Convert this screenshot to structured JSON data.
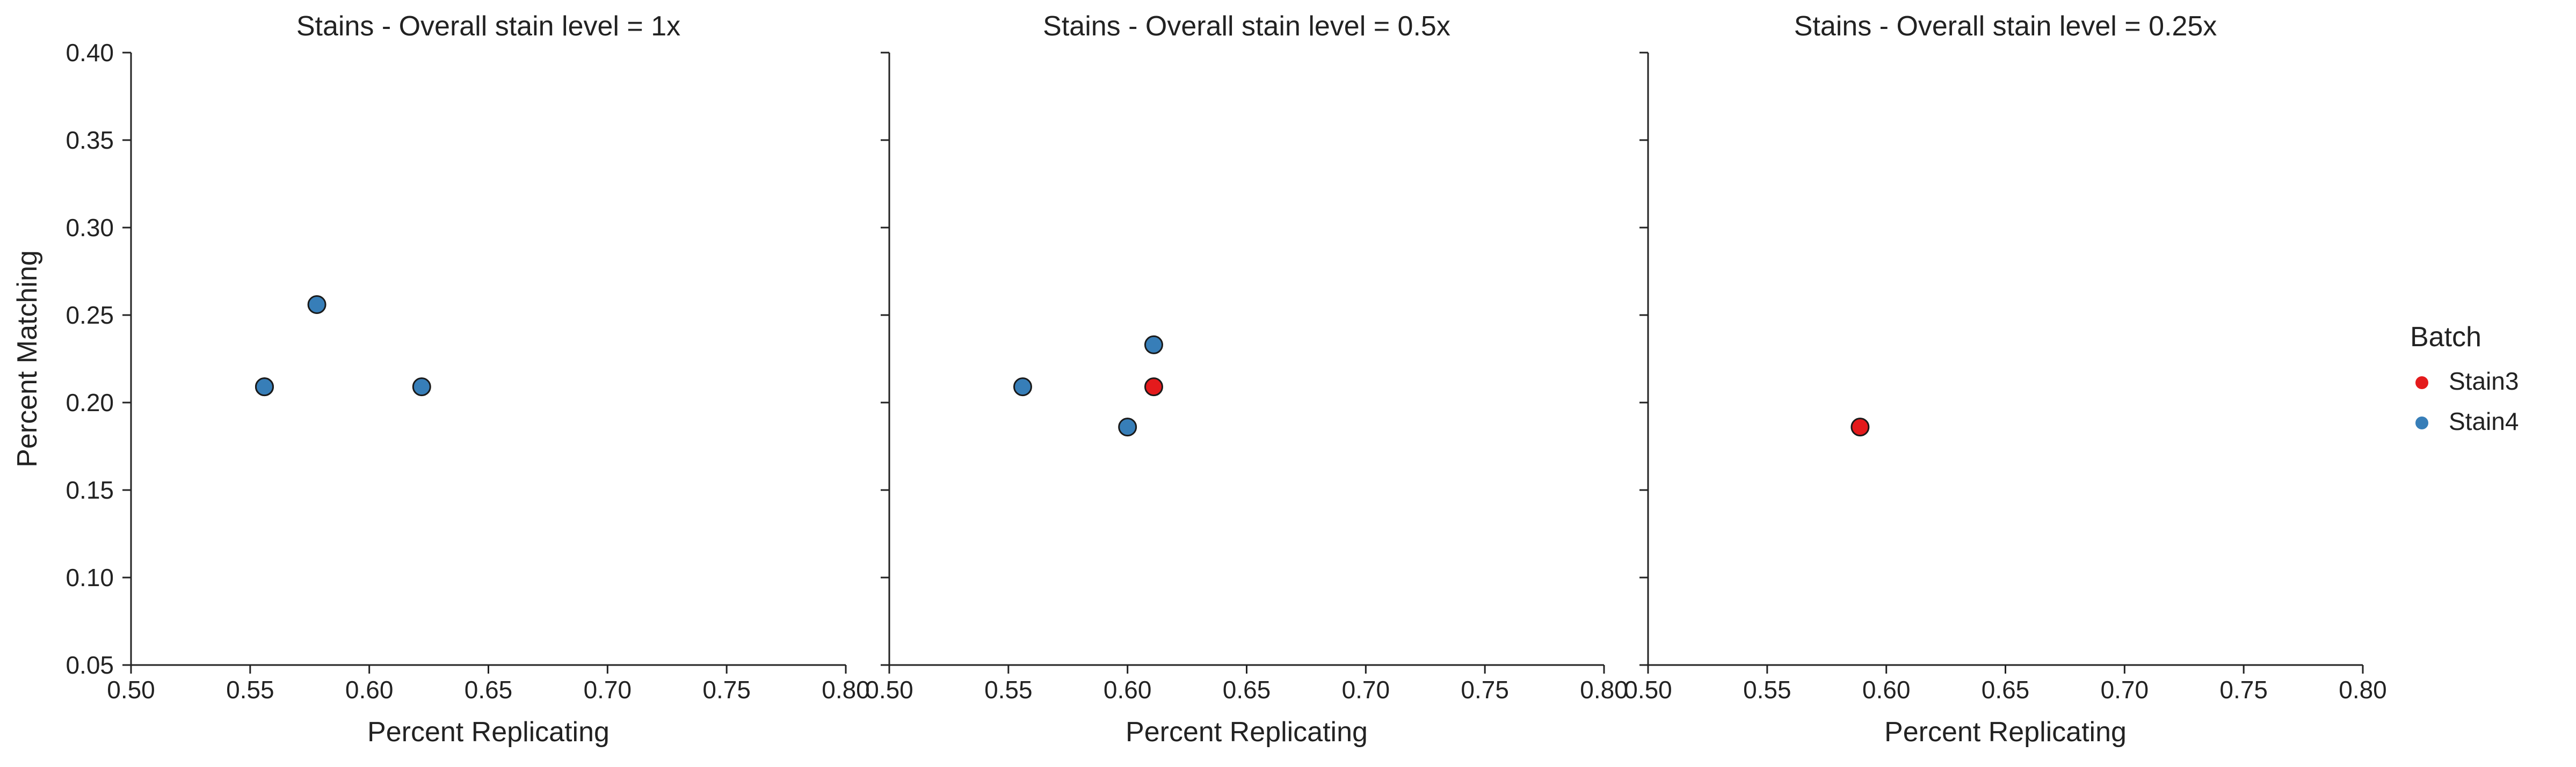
{
  "chart_data": [
    {
      "type": "scatter",
      "title": "Stains - Overall stain level = 1x",
      "xlabel": "Percent Replicating",
      "ylabel": "Percent Matching",
      "xlim": [
        0.5,
        0.8
      ],
      "ylim": [
        0.05,
        0.4
      ],
      "xticks": [
        "0.50",
        "0.55",
        "0.60",
        "0.65",
        "0.70",
        "0.75",
        "0.80"
      ],
      "yticks": [
        "0.05",
        "0.10",
        "0.15",
        "0.20",
        "0.25",
        "0.30",
        "0.35",
        "0.40"
      ],
      "grid": false,
      "series": [
        {
          "name": "Stain3",
          "color": "#e41a1c",
          "points": []
        },
        {
          "name": "Stain4",
          "color": "#377eb8",
          "points": [
            {
              "x": 0.556,
              "y": 0.209
            },
            {
              "x": 0.556,
              "y": 0.209
            },
            {
              "x": 0.578,
              "y": 0.256
            },
            {
              "x": 0.622,
              "y": 0.209
            }
          ]
        }
      ]
    },
    {
      "type": "scatter",
      "title": "Stains - Overall stain level = 0.5x",
      "xlabel": "Percent Replicating",
      "ylabel": "",
      "xlim": [
        0.5,
        0.8
      ],
      "ylim": [
        0.05,
        0.4
      ],
      "xticks": [
        "0.50",
        "0.55",
        "0.60",
        "0.65",
        "0.70",
        "0.75",
        "0.80"
      ],
      "yticks": [
        "",
        "",
        "",
        "",
        "",
        "",
        "",
        ""
      ],
      "grid": false,
      "series": [
        {
          "name": "Stain3",
          "color": "#e41a1c",
          "points": [
            {
              "x": 0.611,
              "y": 0.209
            }
          ]
        },
        {
          "name": "Stain4",
          "color": "#377eb8",
          "points": [
            {
              "x": 0.556,
              "y": 0.209
            },
            {
              "x": 0.6,
              "y": 0.186
            },
            {
              "x": 0.611,
              "y": 0.233
            }
          ]
        }
      ]
    },
    {
      "type": "scatter",
      "title": "Stains - Overall stain level = 0.25x",
      "xlabel": "Percent Replicating",
      "ylabel": "",
      "xlim": [
        0.5,
        0.8
      ],
      "ylim": [
        0.05,
        0.4
      ],
      "xticks": [
        "0.50",
        "0.55",
        "0.60",
        "0.65",
        "0.70",
        "0.75",
        "0.80"
      ],
      "yticks": [
        "",
        "",
        "",
        "",
        "",
        "",
        "",
        ""
      ],
      "grid": false,
      "series": [
        {
          "name": "Stain3",
          "color": "#e41a1c",
          "points": [
            {
              "x": 0.589,
              "y": 0.186
            }
          ]
        },
        {
          "name": "Stain4",
          "color": "#377eb8",
          "points": []
        }
      ]
    }
  ],
  "legend": {
    "title": "Batch",
    "placement": "right",
    "entries": [
      {
        "name": "Stain3",
        "color": "#e41a1c"
      },
      {
        "name": "Stain4",
        "color": "#377eb8"
      }
    ]
  }
}
